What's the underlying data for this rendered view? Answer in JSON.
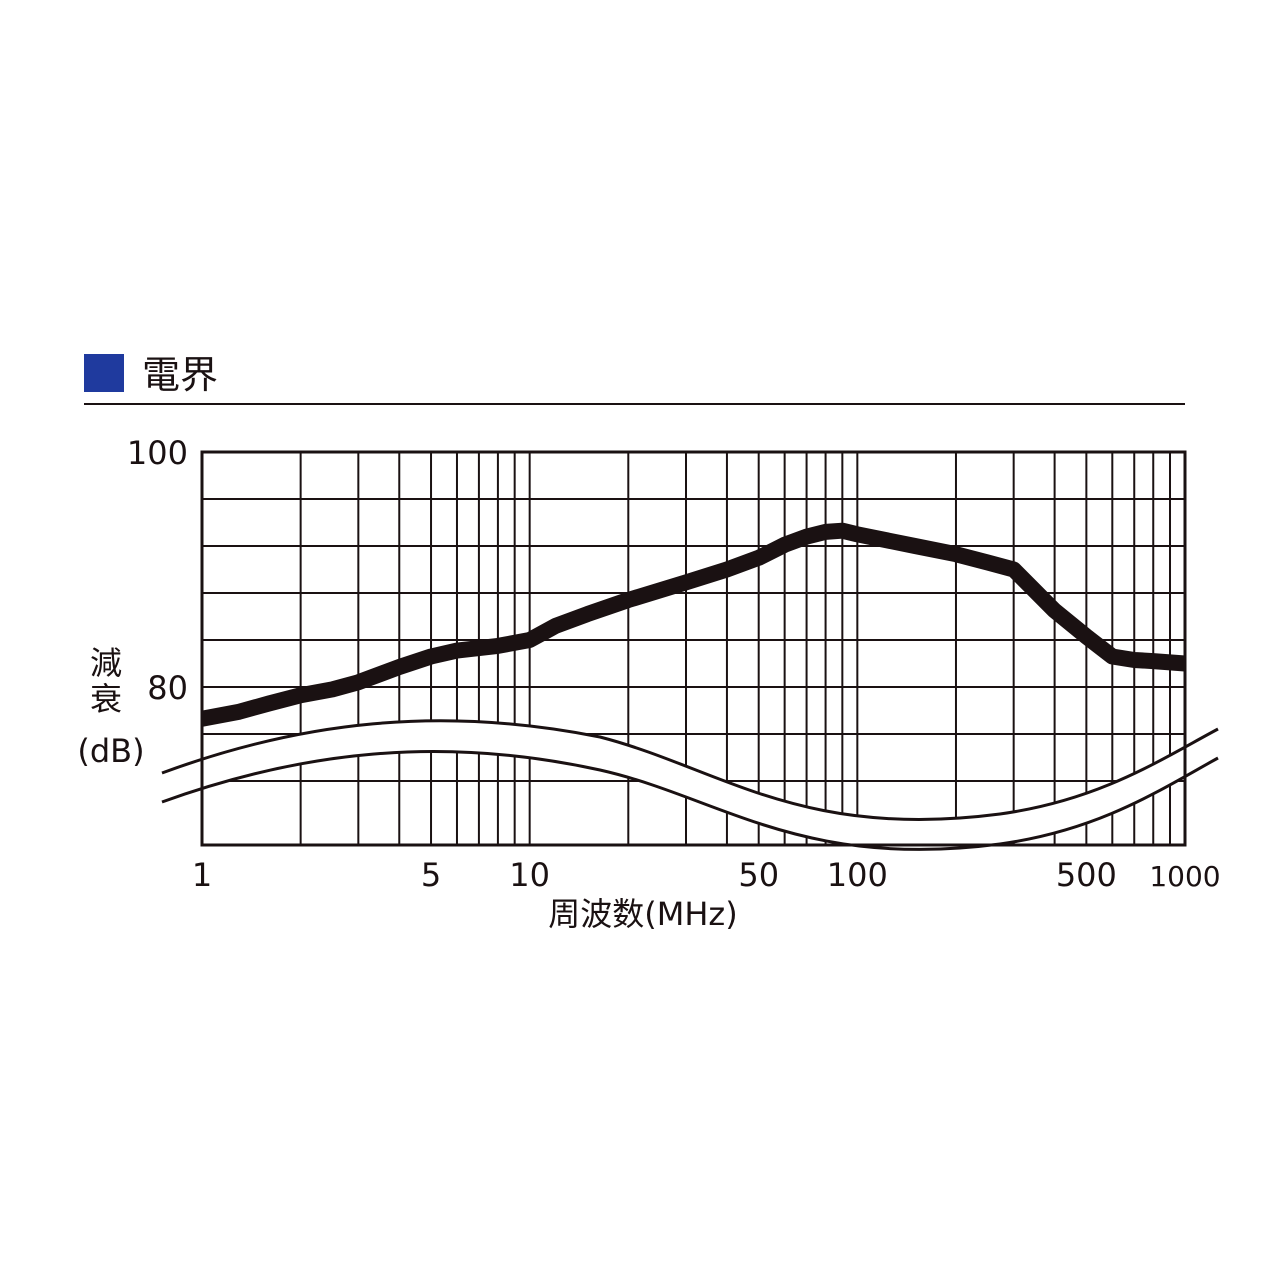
{
  "header": {
    "title": "電界",
    "marker_color": "#1f3a9e"
  },
  "chart_data": {
    "type": "line",
    "title": "電界",
    "xlabel": "周波数(MHz)",
    "ylabel": [
      "減",
      "衰",
      "(dB)"
    ],
    "x_scale": "log",
    "x_range": [
      1,
      1000
    ],
    "x_ticks": [
      {
        "value": 1,
        "label": "1"
      },
      {
        "value": 5,
        "label": "5"
      },
      {
        "value": 10,
        "label": "10"
      },
      {
        "value": 50,
        "label": "50"
      },
      {
        "value": 100,
        "label": "100"
      },
      {
        "value": 500,
        "label": "500"
      },
      {
        "value": 1000,
        "label": "1000"
      }
    ],
    "y_ticks": [
      {
        "value": 100,
        "label": "100"
      },
      {
        "value": 80,
        "label": "80"
      }
    ],
    "y_axis_break": true,
    "grid": true,
    "line_color": "#1a1112",
    "series": [
      {
        "x": [
          1,
          1.3,
          1.6,
          2,
          2.5,
          3,
          4,
          5,
          6,
          8,
          10,
          12,
          15,
          20,
          30,
          40,
          50,
          60,
          70,
          80,
          90,
          100,
          150,
          200,
          250,
          300,
          400,
          500,
          600,
          700,
          800,
          1000
        ],
        "y": [
          77.3,
          77.9,
          78.6,
          79.3,
          79.8,
          80.4,
          81.7,
          82.6,
          83.1,
          83.5,
          84.0,
          85.2,
          86.2,
          87.4,
          88.9,
          90.0,
          91.0,
          92.1,
          92.8,
          93.2,
          93.3,
          93.0,
          92.0,
          91.3,
          90.6,
          90.0,
          86.5,
          84.3,
          82.6,
          82.3,
          82.2,
          82.0
        ]
      }
    ]
  }
}
